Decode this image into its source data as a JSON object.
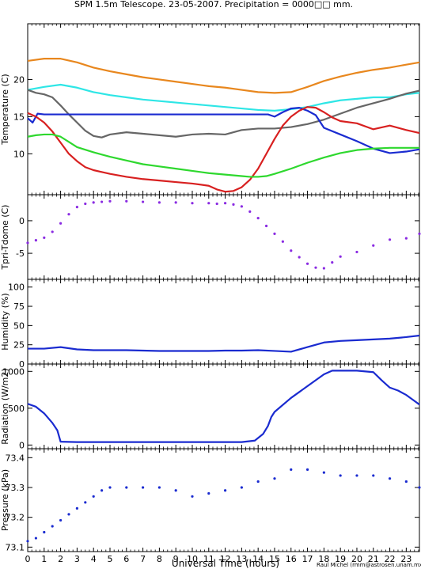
{
  "title": "SPM 1.5m Telescope. 23-05-2007. Precipitation = 0000□□ mm.",
  "xlabel": "Universal Time (hours)",
  "credit": "Raul Michel (rmm@astrosen.unam.mx)",
  "x_ticks": [
    "0",
    "1",
    "2",
    "3",
    "4",
    "5",
    "6",
    "7",
    "8",
    "9",
    "10",
    "11",
    "12",
    "13",
    "14",
    "15",
    "16",
    "17",
    "18",
    "19",
    "20",
    "21",
    "22",
    "23"
  ],
  "chart_data": [
    {
      "type": "line",
      "ylabel": "Temperature (C)",
      "xlim": [
        0,
        23.8
      ],
      "ylim": [
        4.5,
        27.5
      ],
      "yticks": [
        10,
        15,
        20
      ],
      "grid": false,
      "series": [
        {
          "color": "#e8871e",
          "x": [
            0,
            1,
            2,
            3,
            4,
            5,
            6,
            7,
            8,
            9,
            10,
            11,
            12,
            13,
            14,
            15,
            16,
            17,
            18,
            19,
            20,
            21,
            22,
            23,
            23.8
          ],
          "y": [
            22.5,
            22.8,
            22.8,
            22.3,
            21.6,
            21.1,
            20.7,
            20.3,
            20.0,
            19.7,
            19.4,
            19.1,
            18.9,
            18.6,
            18.3,
            18.2,
            18.3,
            19.0,
            19.8,
            20.4,
            20.9,
            21.3,
            21.6,
            22.0,
            22.3
          ]
        },
        {
          "color": "#2ee6e6",
          "x": [
            0,
            1,
            2,
            3,
            4,
            5,
            6,
            7,
            8,
            9,
            10,
            11,
            12,
            13,
            14,
            15,
            16,
            17,
            18,
            19,
            20,
            21,
            22,
            23,
            23.8
          ],
          "y": [
            18.6,
            19.0,
            19.3,
            18.9,
            18.3,
            17.9,
            17.6,
            17.3,
            17.1,
            16.9,
            16.7,
            16.5,
            16.3,
            16.1,
            15.9,
            15.8,
            16.0,
            16.3,
            16.8,
            17.2,
            17.4,
            17.6,
            17.6,
            18.0,
            18.2
          ]
        },
        {
          "color": "#666666",
          "x": [
            0,
            0.5,
            1,
            1.5,
            2,
            2.5,
            3,
            3.5,
            4,
            4.5,
            5,
            6,
            7,
            8,
            9,
            10,
            11,
            12,
            13,
            14,
            15,
            16,
            17,
            18,
            19,
            20,
            21,
            22,
            23,
            23.8
          ],
          "y": [
            18.6,
            18.2,
            18.0,
            17.6,
            16.5,
            15.3,
            14.2,
            13.1,
            12.4,
            12.2,
            12.6,
            12.9,
            12.7,
            12.5,
            12.3,
            12.6,
            12.7,
            12.6,
            13.2,
            13.4,
            13.4,
            13.6,
            14.0,
            14.6,
            15.4,
            16.2,
            16.8,
            17.4,
            18.1,
            18.5
          ]
        },
        {
          "color": "#1a2bd0",
          "x": [
            0,
            0.3,
            0.6,
            1,
            2,
            3,
            4,
            5,
            6,
            7,
            8,
            9,
            10,
            11,
            12,
            13,
            14,
            14.6,
            15,
            15.5,
            16,
            16.5,
            17,
            17.5,
            18,
            19,
            20,
            21,
            22,
            23,
            23.8
          ],
          "y": [
            14.8,
            14.2,
            15.4,
            15.3,
            15.3,
            15.3,
            15.3,
            15.3,
            15.3,
            15.3,
            15.3,
            15.3,
            15.3,
            15.3,
            15.3,
            15.3,
            15.3,
            15.3,
            15.0,
            15.6,
            16.1,
            16.2,
            15.8,
            15.2,
            13.5,
            12.6,
            11.7,
            10.7,
            10.1,
            10.3,
            10.6
          ]
        },
        {
          "color": "#d82020",
          "x": [
            0,
            0.5,
            1,
            1.5,
            2,
            2.5,
            3,
            3.5,
            4,
            5,
            6,
            7,
            8,
            9,
            10,
            11,
            11.5,
            12,
            12.5,
            13,
            13.5,
            14,
            14.5,
            15,
            15.5,
            16,
            16.5,
            17,
            17.5,
            18,
            18.5,
            19,
            20,
            21,
            22,
            23,
            23.8
          ],
          "y": [
            15.5,
            15.0,
            14.2,
            13.0,
            11.5,
            10.0,
            9.0,
            8.2,
            7.8,
            7.3,
            6.9,
            6.6,
            6.4,
            6.2,
            6.0,
            5.7,
            5.2,
            4.9,
            5.0,
            5.5,
            6.5,
            8.0,
            10.0,
            12.0,
            13.8,
            15.0,
            15.8,
            16.3,
            16.2,
            15.6,
            14.9,
            14.4,
            14.1,
            13.3,
            13.8,
            13.2,
            12.8
          ]
        },
        {
          "color": "#2ed82e",
          "x": [
            0,
            0.5,
            1,
            1.5,
            2,
            2.5,
            3,
            4,
            5,
            6,
            7,
            8,
            9,
            10,
            11,
            12,
            13,
            13.5,
            14,
            14.5,
            15,
            16,
            17,
            18,
            19,
            20,
            21,
            22,
            23,
            23.8
          ],
          "y": [
            12.3,
            12.5,
            12.6,
            12.6,
            12.3,
            11.6,
            10.9,
            10.2,
            9.6,
            9.1,
            8.6,
            8.3,
            8.0,
            7.7,
            7.4,
            7.2,
            7.0,
            6.9,
            6.9,
            7.0,
            7.3,
            8.0,
            8.8,
            9.5,
            10.1,
            10.5,
            10.7,
            10.8,
            10.8,
            10.8
          ]
        }
      ]
    },
    {
      "type": "scatter",
      "ylabel": "Tpri-Tdome (C)",
      "xlim": [
        0,
        23.8
      ],
      "ylim": [
        -9,
        4
      ],
      "yticks": [
        -5,
        0
      ],
      "grid": false,
      "series": [
        {
          "color": "#8a2be2",
          "x": [
            0,
            0.5,
            1,
            1.5,
            2,
            2.5,
            3,
            3.5,
            4,
            4.5,
            5,
            6,
            7,
            8,
            9,
            10,
            11,
            11.5,
            12,
            12.5,
            13,
            13.5,
            14,
            14.5,
            15,
            15.5,
            16,
            16.5,
            17,
            17.5,
            18,
            18.5,
            19,
            20,
            21,
            22,
            23,
            23.8
          ],
          "y": [
            -3.4,
            -3.0,
            -2.6,
            -1.7,
            -0.4,
            1.0,
            2.1,
            2.6,
            2.8,
            2.9,
            3.0,
            3.0,
            2.9,
            2.8,
            2.8,
            2.7,
            2.7,
            2.6,
            2.7,
            2.5,
            2.2,
            1.4,
            0.4,
            -0.8,
            -2.0,
            -3.2,
            -4.6,
            -5.6,
            -6.6,
            -7.2,
            -7.3,
            -6.4,
            -5.5,
            -4.8,
            -3.8,
            -2.9,
            -2.7,
            -2.0
          ]
        }
      ]
    },
    {
      "type": "line",
      "ylabel": "Humidity (%)",
      "xlim": [
        0,
        23.8
      ],
      "ylim": [
        0,
        110
      ],
      "yticks": [
        0,
        25,
        50,
        75,
        100
      ],
      "grid": false,
      "series": [
        {
          "color": "#1a2bd0",
          "x": [
            0,
            1,
            2,
            3,
            4,
            5,
            6,
            7,
            8,
            9,
            10,
            11,
            12,
            13,
            14,
            15,
            16,
            17,
            18,
            19,
            20,
            21,
            22,
            23,
            23.8
          ],
          "y": [
            20,
            20,
            22,
            19,
            18,
            18,
            18,
            17.5,
            17,
            17,
            17,
            17,
            17.5,
            17.5,
            18,
            17,
            16,
            22,
            28,
            30,
            31,
            32,
            33,
            35,
            37
          ]
        }
      ]
    },
    {
      "type": "line",
      "ylabel": "Radiation (W/m2)",
      "xlim": [
        0,
        23.8
      ],
      "ylim": [
        -50,
        1100
      ],
      "yticks": [
        0,
        500,
        1000
      ],
      "grid": false,
      "series": [
        {
          "color": "#1a2bd0",
          "x": [
            0,
            0.5,
            1,
            1.5,
            1.8,
            2,
            3,
            4,
            5,
            6,
            7,
            8,
            9,
            10,
            11,
            12,
            13,
            13.8,
            14.3,
            14.6,
            14.8,
            15,
            16,
            17,
            18,
            18.5,
            19,
            20,
            21,
            21.5,
            22,
            22.5,
            23,
            23.8
          ],
          "y": [
            560,
            520,
            430,
            300,
            200,
            45,
            40,
            40,
            40,
            40,
            40,
            40,
            40,
            40,
            40,
            40,
            40,
            60,
            150,
            260,
            380,
            450,
            640,
            800,
            960,
            1010,
            1010,
            1010,
            990,
            880,
            780,
            740,
            680,
            550
          ]
        }
      ]
    },
    {
      "type": "scatter",
      "ylabel": "Pressure (kPa)",
      "xlim": [
        0,
        23.8
      ],
      "ylim": [
        73.085,
        73.43
      ],
      "yticks": [
        73.1,
        73.2,
        73.3,
        73.4
      ],
      "grid": false,
      "series": [
        {
          "color": "#1a2bd0",
          "x": [
            0,
            0.5,
            1,
            1.5,
            2,
            2.5,
            3,
            3.5,
            4,
            4.5,
            5,
            6,
            7,
            8,
            9,
            10,
            11,
            12,
            13,
            14,
            15,
            16,
            17,
            18,
            19,
            20,
            21,
            22,
            23,
            23.8
          ],
          "y": [
            73.12,
            73.13,
            73.15,
            73.17,
            73.19,
            73.21,
            73.23,
            73.25,
            73.27,
            73.29,
            73.3,
            73.3,
            73.3,
            73.3,
            73.29,
            73.27,
            73.28,
            73.29,
            73.3,
            73.32,
            73.33,
            73.36,
            73.36,
            73.35,
            73.34,
            73.34,
            73.34,
            73.33,
            73.32,
            73.3
          ]
        }
      ]
    }
  ]
}
